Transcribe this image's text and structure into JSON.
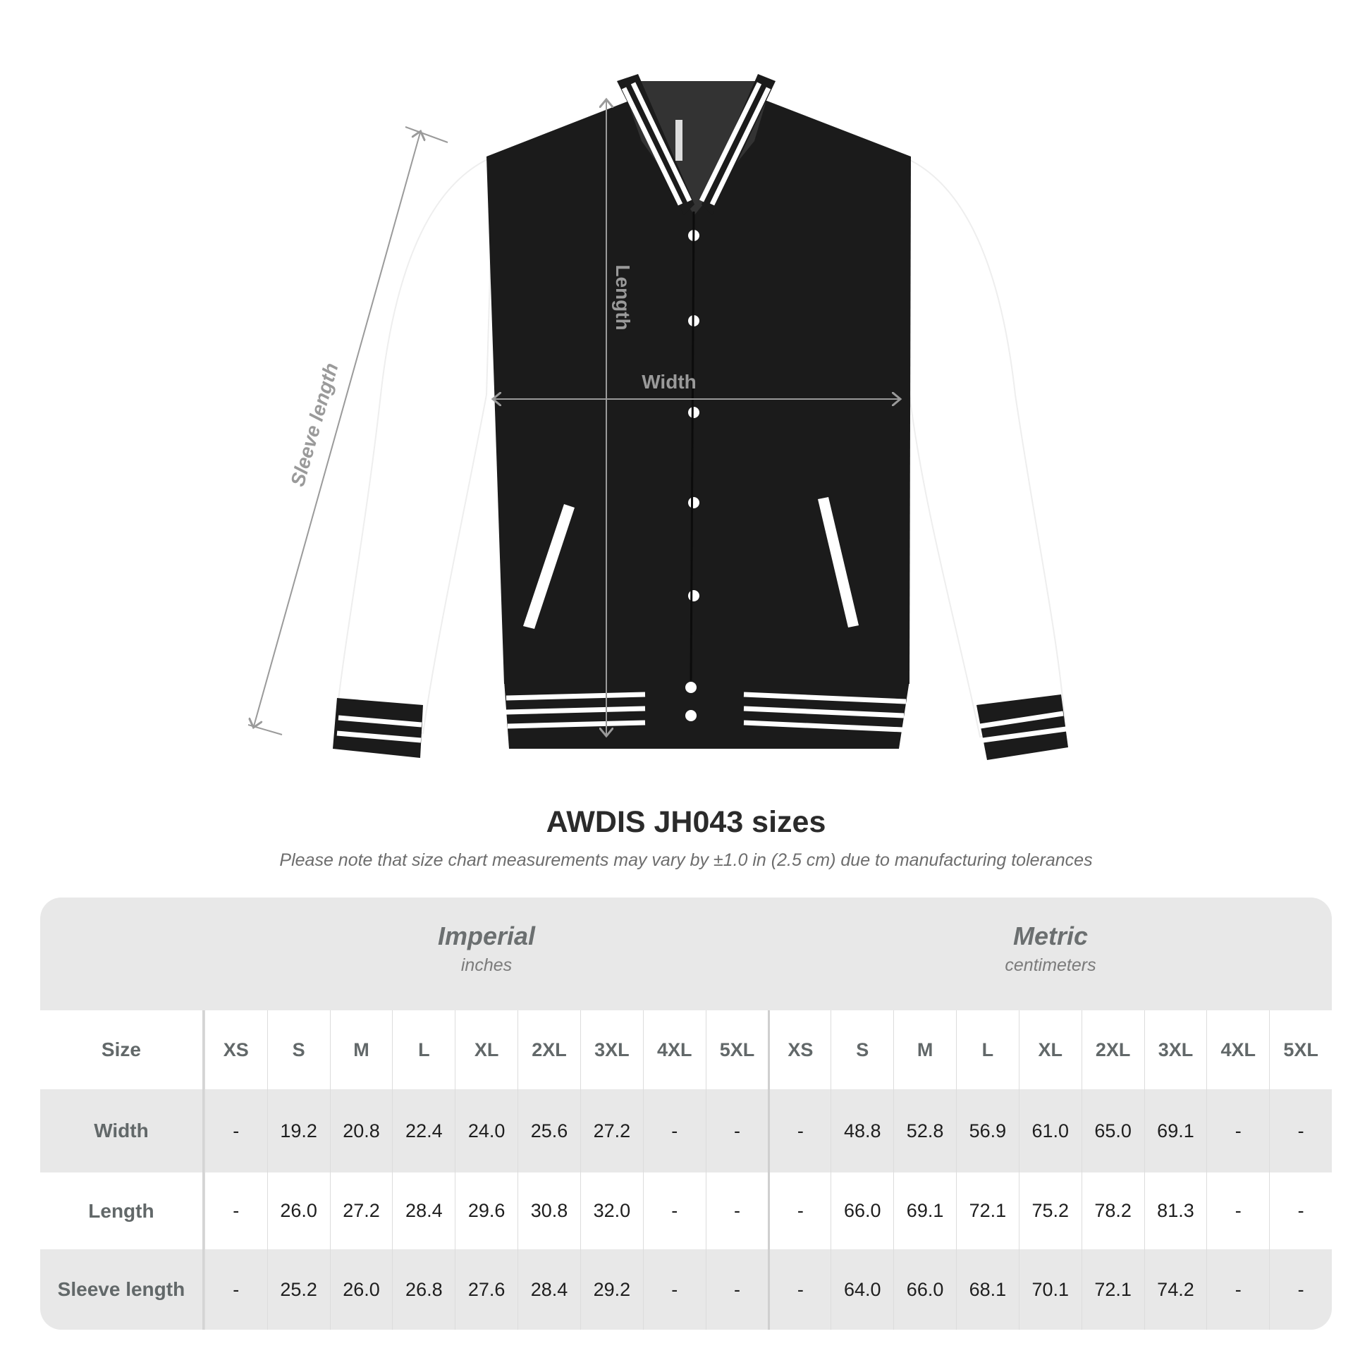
{
  "diagram": {
    "labels": {
      "sleeve_length": "Sleeve length",
      "length": "Length",
      "width": "Width"
    },
    "colors": {
      "body": "#1b1b1b",
      "sleeves": "#ffffff",
      "measure_lines": "#9a9a9a"
    }
  },
  "title": "AWDIS JH043 sizes",
  "note": "Please note that size chart measurements may vary by ±1.0 in (2.5 cm) due to manufacturing tolerances",
  "table": {
    "imperial": {
      "name": "Imperial",
      "unit": "inches"
    },
    "metric": {
      "name": "Metric",
      "unit": "centimeters"
    },
    "size_label": "Size",
    "sizes": [
      "XS",
      "S",
      "M",
      "L",
      "XL",
      "2XL",
      "3XL",
      "4XL",
      "5XL"
    ],
    "rows": [
      {
        "label": "Width",
        "imperial": [
          "-",
          "19.2",
          "20.8",
          "22.4",
          "24.0",
          "25.6",
          "27.2",
          "-",
          "-"
        ],
        "metric": [
          "-",
          "48.8",
          "52.8",
          "56.9",
          "61.0",
          "65.0",
          "69.1",
          "-",
          "-"
        ]
      },
      {
        "label": "Length",
        "imperial": [
          "-",
          "26.0",
          "27.2",
          "28.4",
          "29.6",
          "30.8",
          "32.0",
          "-",
          "-"
        ],
        "metric": [
          "-",
          "66.0",
          "69.1",
          "72.1",
          "75.2",
          "78.2",
          "81.3",
          "-",
          "-"
        ]
      },
      {
        "label": "Sleeve length",
        "imperial": [
          "-",
          "25.2",
          "26.0",
          "26.8",
          "27.6",
          "28.4",
          "29.2",
          "-",
          "-"
        ],
        "metric": [
          "-",
          "64.0",
          "66.0",
          "68.1",
          "70.1",
          "72.1",
          "74.2",
          "-",
          "-"
        ]
      }
    ]
  }
}
